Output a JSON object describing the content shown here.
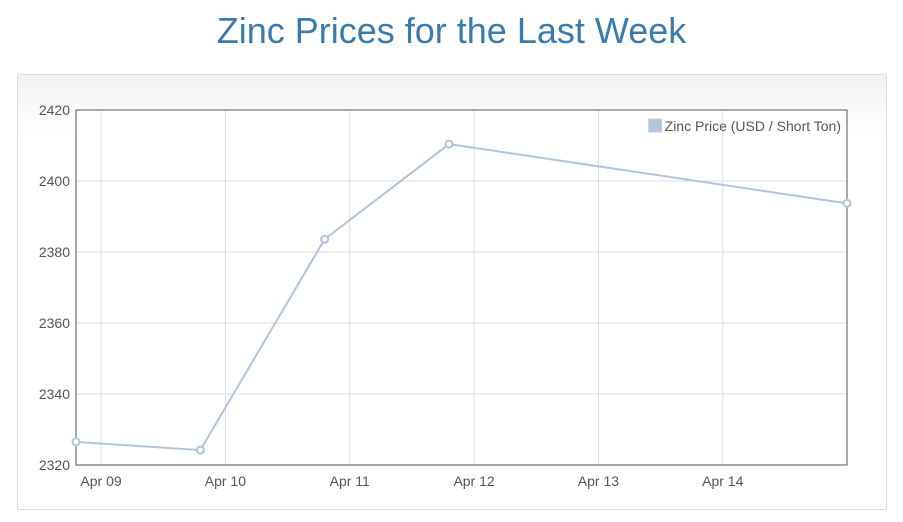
{
  "page": {
    "title": "Zinc Prices for the Last Week"
  },
  "colors": {
    "title": "#3a7bab",
    "line": "#b0c4de",
    "grid": "#dddddd",
    "axis": "#555555"
  },
  "chart_data": {
    "type": "line",
    "title": "Zinc Prices for the Last Week",
    "xlabel": "",
    "ylabel": "",
    "grid": true,
    "legend_position": "top-right",
    "x_ticks": [
      "Apr 09",
      "Apr 10",
      "Apr 11",
      "Apr 12",
      "Apr 13",
      "Apr 14"
    ],
    "x_domain": [
      "2024-04-08 19:10",
      "2024-04-14 23:59"
    ],
    "ylim": [
      2320,
      2420
    ],
    "y_ticks": [
      2320,
      2340,
      2360,
      2380,
      2400,
      2420
    ],
    "series": [
      {
        "name": "Zinc Price (USD / Short Ton)",
        "color": "#b0c4de",
        "points": [
          {
            "x": "2024-04-08 19:10",
            "y": 2326.5
          },
          {
            "x": "2024-04-09 19:10",
            "y": 2324.2
          },
          {
            "x": "2024-04-10 19:10",
            "y": 2383.6
          },
          {
            "x": "2024-04-11 19:10",
            "y": 2410.4
          },
          {
            "x": "2024-04-14 23:59",
            "y": 2393.7
          }
        ]
      }
    ]
  }
}
